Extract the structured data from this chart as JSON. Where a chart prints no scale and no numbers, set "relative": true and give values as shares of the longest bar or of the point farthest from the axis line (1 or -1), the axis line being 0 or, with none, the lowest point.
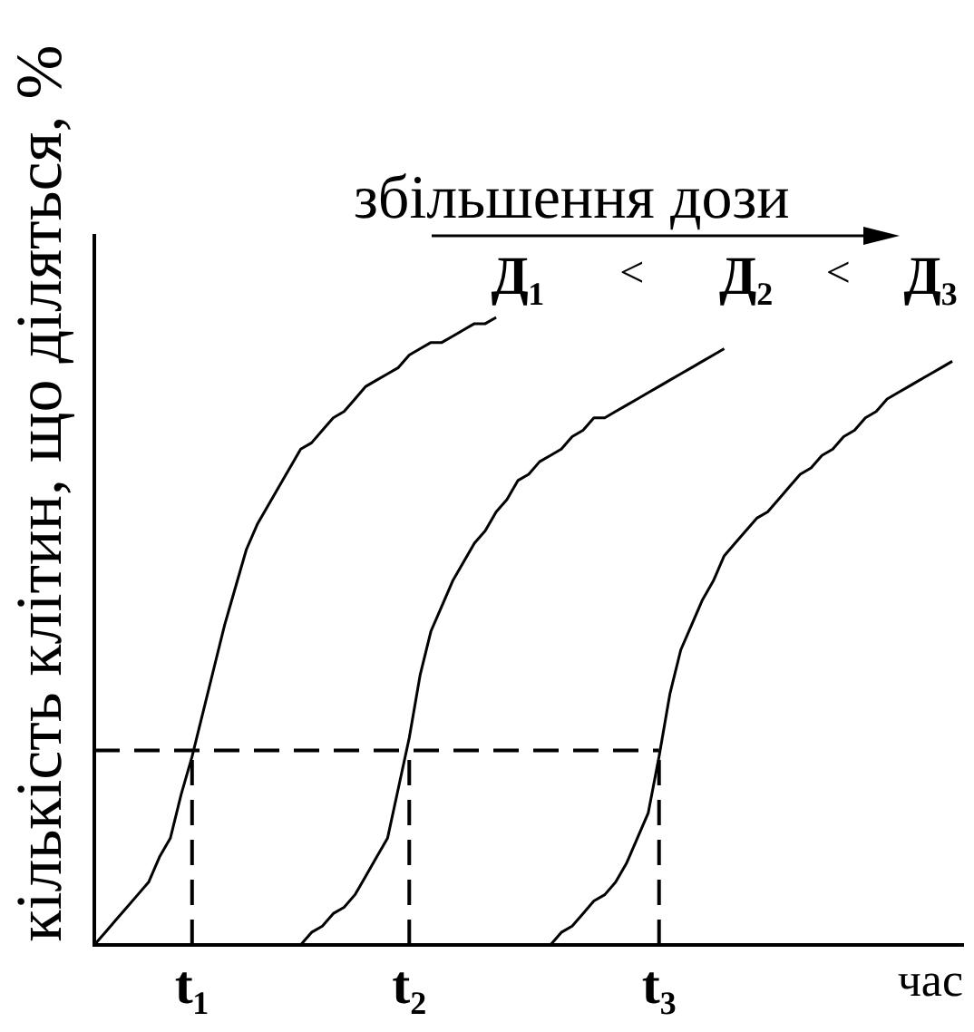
{
  "chart_data": {
    "type": "line",
    "relative": true,
    "ylabel": "кількість клітин, що діляться, %",
    "xlabel": "час",
    "categories": [
      null,
      null,
      null,
      null,
      null,
      null,
      null,
      null,
      null,
      "t₁",
      null,
      null,
      null,
      null,
      null,
      null,
      null,
      null,
      null,
      null,
      null,
      null,
      null,
      null,
      null,
      null,
      null,
      null,
      null,
      "t₂",
      null,
      null,
      null,
      null,
      null,
      null,
      null,
      null,
      null,
      null,
      null,
      null,
      null,
      null,
      null,
      null,
      null,
      null,
      null,
      null,
      null,
      null,
      "t₃",
      null,
      null,
      null,
      null,
      null,
      null,
      null,
      null,
      null,
      null,
      null,
      null,
      null,
      null,
      null,
      null,
      null,
      null,
      null,
      null,
      null,
      null,
      null,
      null,
      null,
      null,
      null,
      null
    ],
    "annotations": [
      "збільшення дози",
      "<",
      "<"
    ],
    "grid": false,
    "ref_lines": [
      {
        "axis": "y",
        "value": 0.31,
        "line_style": "dashed",
        "color": "#000000"
      },
      {
        "axis": "x",
        "value": "t₁",
        "line_style": "dashed",
        "color": "#000000"
      },
      {
        "axis": "x",
        "value": "t₂",
        "line_style": "dashed",
        "color": "#000000"
      },
      {
        "axis": "x",
        "value": "t₃",
        "line_style": "dashed",
        "color": "#000000"
      }
    ],
    "series": [
      {
        "name": "Д₁",
        "color": "#000000",
        "values": [
          0,
          0.02,
          0.04,
          0.06,
          0.08,
          0.1,
          0.14,
          0.17,
          0.24,
          0.3,
          0.37,
          0.44,
          0.51,
          0.57,
          0.63,
          0.67,
          0.7,
          0.73,
          0.76,
          0.79,
          0.8,
          0.82,
          0.84,
          0.85,
          0.87,
          0.89,
          0.9,
          0.91,
          0.92,
          0.94,
          0.95,
          0.96,
          0.96,
          0.97,
          0.98,
          0.99,
          0.99,
          1,
          null,
          null,
          null,
          null,
          null,
          null,
          null,
          null,
          null,
          null,
          null,
          null,
          null,
          null,
          null,
          null,
          null,
          null,
          null,
          null,
          null,
          null,
          null,
          null,
          null,
          null,
          null,
          null,
          null,
          null,
          null,
          null,
          null,
          null,
          null,
          null,
          null,
          null,
          null,
          null,
          null,
          null,
          null
        ]
      },
      {
        "name": "Д₂",
        "color": "#000000",
        "values": [
          null,
          null,
          null,
          null,
          null,
          null,
          null,
          null,
          null,
          null,
          null,
          null,
          null,
          null,
          null,
          null,
          null,
          null,
          null,
          0,
          0.02,
          0.03,
          0.05,
          0.06,
          0.08,
          0.11,
          0.14,
          0.17,
          0.25,
          0.33,
          0.43,
          0.5,
          0.54,
          0.58,
          0.61,
          0.64,
          0.66,
          0.69,
          0.71,
          0.74,
          0.75,
          0.77,
          0.78,
          0.79,
          0.81,
          0.82,
          0.84,
          0.84,
          0.85,
          0.86,
          0.87,
          0.88,
          0.89,
          0.9,
          0.91,
          0.92,
          0.93,
          0.94,
          0.95,
          null,
          null,
          null,
          null,
          null,
          null,
          null,
          null,
          null,
          null,
          null,
          null,
          null,
          null,
          null,
          null,
          null,
          null,
          null,
          null,
          null,
          null
        ]
      },
      {
        "name": "Д₃",
        "color": "#000000",
        "values": [
          null,
          null,
          null,
          null,
          null,
          null,
          null,
          null,
          null,
          null,
          null,
          null,
          null,
          null,
          null,
          null,
          null,
          null,
          null,
          null,
          null,
          null,
          null,
          null,
          null,
          null,
          null,
          null,
          null,
          null,
          null,
          null,
          null,
          null,
          null,
          null,
          null,
          null,
          null,
          null,
          null,
          null,
          0,
          0.02,
          0.03,
          0.05,
          0.07,
          0.08,
          0.1,
          0.13,
          0.17,
          0.21,
          0.3,
          0.4,
          0.47,
          0.51,
          0.55,
          0.58,
          0.62,
          0.64,
          0.66,
          0.68,
          0.69,
          0.71,
          0.73,
          0.75,
          0.76,
          0.78,
          0.79,
          0.81,
          0.82,
          0.84,
          0.85,
          0.87,
          0.88,
          0.89,
          0.9,
          0.91,
          0.92,
          0.93,
          null
        ]
      }
    ]
  }
}
